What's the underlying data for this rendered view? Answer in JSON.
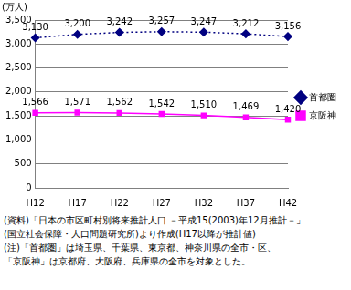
{
  "chart_data": {
    "type": "line",
    "y_label": "(万人)",
    "categories": [
      "H12",
      "H17",
      "H22",
      "H27",
      "H32",
      "H37",
      "H42"
    ],
    "series": [
      {
        "name": "首都圏",
        "color": "#000080",
        "marker": "diamond",
        "line_style": "dotted",
        "values": [
          3130,
          3200,
          3242,
          3257,
          3247,
          3212,
          3156
        ],
        "value_labels": [
          "3,130",
          "3,200",
          "3,242",
          "3,257",
          "3,247",
          "3,212",
          "3,156"
        ]
      },
      {
        "name": "京阪神",
        "color": "#ff00ff",
        "marker": "square",
        "line_style": "solid",
        "values": [
          1566,
          1571,
          1562,
          1542,
          1510,
          1469,
          1420
        ],
        "value_labels": [
          "1,566",
          "1,571",
          "1,562",
          "1,542",
          "1,510",
          "1,469",
          "1,420"
        ]
      }
    ],
    "ylim": [
      0,
      3500
    ],
    "yticks": [
      0,
      500,
      {
        "value": 1000,
        "label": "1,000"
      },
      {
        "value": 1500,
        "label": "1,500"
      },
      {
        "value": 2000,
        "label": "2,000"
      },
      {
        "value": 2500,
        "label": "2,500"
      },
      {
        "value": 3000,
        "label": "3,000"
      },
      {
        "value": 3500,
        "label": "3,500"
      }
    ],
    "grid": true,
    "legend": "right",
    "data_labels": true,
    "notes": [
      "(資料)「日本の市区町村別将来推計人口 －平成15(2003)年12月推計－」",
      "(国立社会保障・人口問題研究所)より作成(H17以降が推計値)",
      "(注)「首都圏」は埼玉県、千葉県、東京都、神奈川県の全市・区、",
      "「京阪神」は京都府、大阪府、兵庫県の全市を対象とした。"
    ]
  }
}
